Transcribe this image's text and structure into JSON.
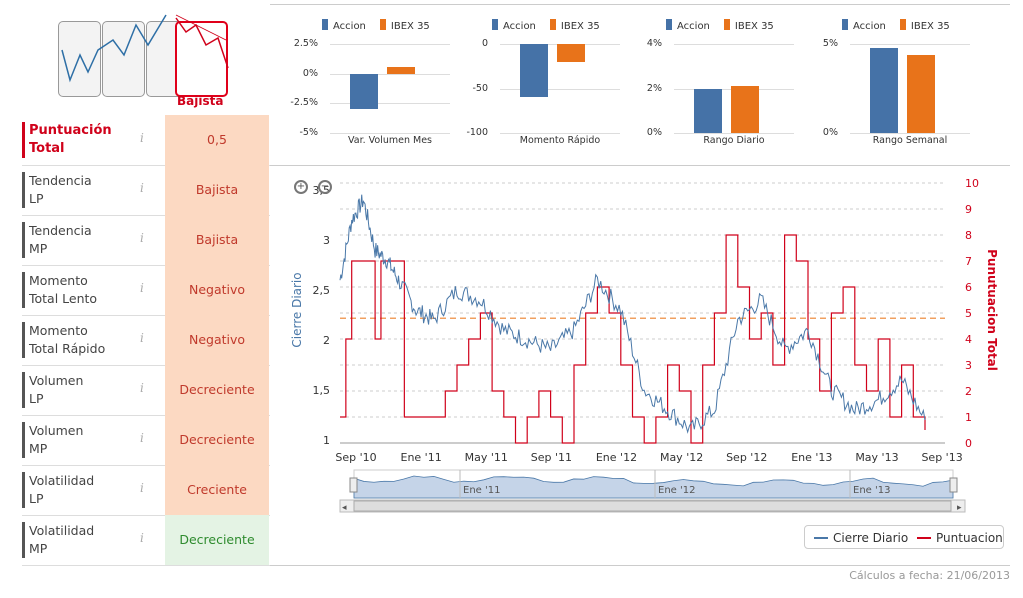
{
  "trend_selector": {
    "label": "Bajista",
    "options": [
      "trend-option-1",
      "trend-option-2",
      "trend-option-3",
      "trend-option-4"
    ],
    "selected_index": 3,
    "colors": {
      "selected": "#d0021b",
      "line": "#2e6fa6"
    }
  },
  "score_table": {
    "info_glyph": "i",
    "rows": [
      {
        "name_l1": "Puntuación",
        "name_l2": "Total",
        "value": "0,5",
        "status": "total"
      },
      {
        "name_l1": "Tendencia",
        "name_l2": "LP",
        "value": "Bajista",
        "status": "bad"
      },
      {
        "name_l1": "Tendencia",
        "name_l2": "MP",
        "value": "Bajista",
        "status": "bad"
      },
      {
        "name_l1": "Momento",
        "name_l2": "Total Lento",
        "value": "Negativo",
        "status": "bad"
      },
      {
        "name_l1": "Momento",
        "name_l2": "Total Rápido",
        "value": "Negativo",
        "status": "bad"
      },
      {
        "name_l1": "Volumen",
        "name_l2": "LP",
        "value": "Decreciente",
        "status": "bad"
      },
      {
        "name_l1": "Volumen",
        "name_l2": "MP",
        "value": "Decreciente",
        "status": "bad"
      },
      {
        "name_l1": "Volatilidad",
        "name_l2": "LP",
        "value": "Creciente",
        "status": "bad"
      },
      {
        "name_l1": "Volatilidad",
        "name_l2": "MP",
        "value": "Decreciente",
        "status": "good"
      }
    ]
  },
  "mini_legend": {
    "series1": "Accion",
    "series2": "IBEX 35",
    "color1": "#4572a7",
    "color2": "#e8731a"
  },
  "chart_data": [
    {
      "type": "bar",
      "title": "Var. Volumen Mes",
      "yticks": [
        "2.5%",
        "0%",
        "-2.5%",
        "-5%"
      ],
      "ylim": [
        -5,
        2.5
      ],
      "series": [
        {
          "name": "Accion",
          "values": [
            -3.0
          ]
        },
        {
          "name": "IBEX 35",
          "values": [
            0.6
          ]
        }
      ]
    },
    {
      "type": "bar",
      "title": "Momento Rápido",
      "yticks": [
        "0",
        "-50",
        "-100"
      ],
      "ylim": [
        -100,
        0
      ],
      "series": [
        {
          "name": "Accion",
          "values": [
            -59
          ]
        },
        {
          "name": "IBEX 35",
          "values": [
            -20
          ]
        }
      ]
    },
    {
      "type": "bar",
      "title": "Rango Diario",
      "yticks": [
        "4%",
        "2%",
        "0%"
      ],
      "ylim": [
        0,
        4
      ],
      "series": [
        {
          "name": "Accion",
          "values": [
            2.0
          ]
        },
        {
          "name": "IBEX 35",
          "values": [
            2.1
          ]
        }
      ]
    },
    {
      "type": "bar",
      "title": "Rango Semanal",
      "yticks": [
        "5%",
        "0%"
      ],
      "ylim": [
        0,
        5
      ],
      "series": [
        {
          "name": "Accion",
          "values": [
            4.8
          ]
        },
        {
          "name": "IBEX 35",
          "values": [
            4.4
          ]
        }
      ]
    },
    {
      "type": "line",
      "ylabel_left": "Cierre Diario",
      "ylabel_right": "Punutuacion Total",
      "yticks_left": [
        "3,5",
        "3",
        "2,5",
        "2",
        "1,5",
        "1"
      ],
      "ylim_left": [
        1,
        3.5
      ],
      "yticks_right": [
        "10",
        "9",
        "8",
        "7",
        "6",
        "5",
        "4",
        "3",
        "2",
        "1",
        "0"
      ],
      "ylim_right": [
        0,
        10
      ],
      "xticks": [
        "Sep '10",
        "Ene '11",
        "May '11",
        "Sep '11",
        "Ene '12",
        "May '12",
        "Sep '12",
        "Ene '13",
        "May '13",
        "Sep '13"
      ],
      "threshold_right": 4.8,
      "navigator_labels": [
        "Ene '11",
        "Ene '12",
        "Ene '13"
      ],
      "series": [
        {
          "name": "Cierre Diario",
          "color": "#4a78a8",
          "t": [
            0,
            2,
            4,
            6,
            8,
            10,
            13,
            16,
            20,
            24,
            28,
            32,
            36,
            40,
            44,
            48,
            52,
            56,
            60,
            64,
            68,
            72,
            76,
            80,
            84,
            88,
            92,
            96,
            100
          ],
          "values": [
            2.6,
            3.2,
            3.4,
            2.9,
            2.8,
            2.6,
            2.3,
            2.2,
            2.5,
            2.4,
            2.1,
            2.0,
            1.9,
            2.1,
            2.6,
            2.3,
            1.5,
            1.3,
            1.1,
            1.3,
            2.2,
            2.4,
            1.9,
            2.1,
            1.5,
            1.3,
            1.4,
            1.6,
            1.2
          ]
        },
        {
          "name": "Puntuacion",
          "color": "#d0021b",
          "t": [
            0,
            1,
            2,
            6,
            7,
            11,
            13,
            16,
            18,
            20,
            22,
            24,
            26,
            28,
            30,
            32,
            34,
            36,
            38,
            40,
            42,
            44,
            46,
            48,
            50,
            52,
            54,
            56,
            58,
            60,
            62,
            64,
            66,
            68,
            70,
            72,
            74,
            76,
            78,
            80,
            82,
            84,
            86,
            88,
            90,
            92,
            94,
            96,
            98,
            100
          ],
          "values": [
            1,
            4,
            7,
            4,
            7,
            1,
            1,
            1,
            2,
            3,
            4,
            5,
            2,
            1,
            0,
            1,
            2,
            1,
            0,
            3,
            5,
            6,
            5,
            3,
            1,
            0,
            1,
            3,
            2,
            0,
            3,
            5,
            8,
            6,
            4,
            5,
            3,
            8,
            7,
            4,
            2,
            5,
            6,
            3,
            2,
            4,
            1,
            3,
            1,
            0.5
          ]
        }
      ],
      "legend": [
        "Cierre Diario",
        "Puntuacion"
      ]
    }
  ],
  "footer": {
    "calc_date": "Cálculos a fecha: 21/06/2013"
  }
}
